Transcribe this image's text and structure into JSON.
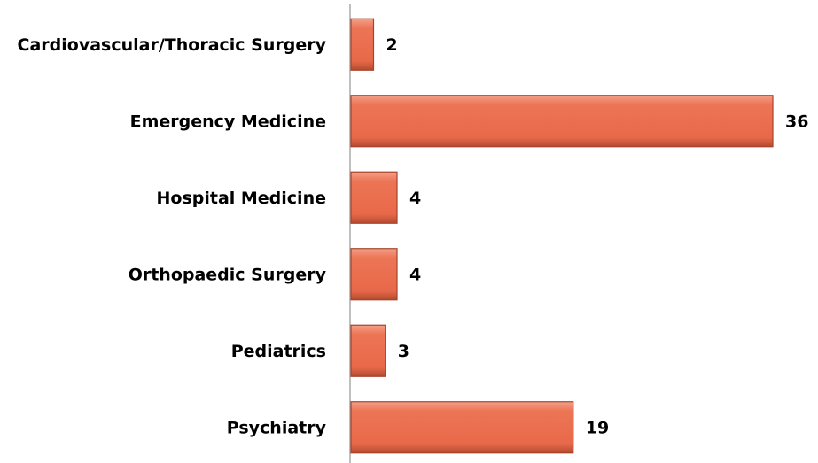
{
  "chart_data": {
    "type": "bar",
    "orientation": "horizontal",
    "categories": [
      "Cardiovascular/Thoracic Surgery",
      "Emergency Medicine",
      "Hospital Medicine",
      "Orthopaedic Surgery",
      "Pediatrics",
      "Psychiatry"
    ],
    "values": [
      2,
      36,
      4,
      4,
      3,
      19
    ],
    "color": "#e8694a"
  }
}
